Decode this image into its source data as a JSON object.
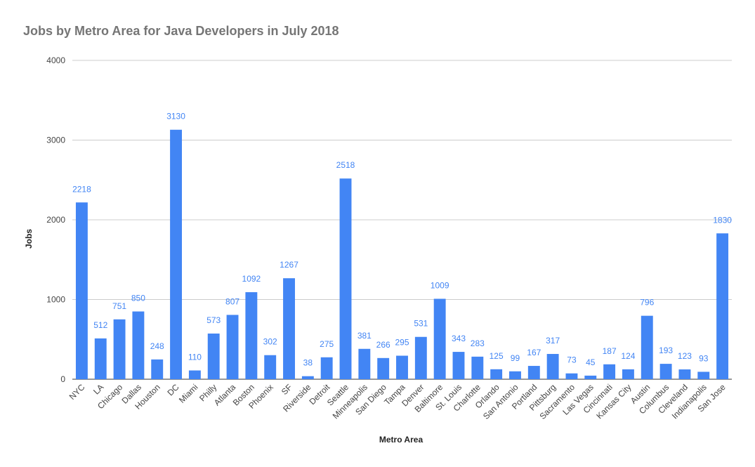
{
  "chart_data": {
    "type": "bar",
    "title": "Jobs by Metro Area for Java Developers in July 2018",
    "xlabel": "Metro Area",
    "ylabel": "Jobs",
    "ylim": [
      0,
      4000
    ],
    "yticks": [
      0,
      1000,
      2000,
      3000,
      4000
    ],
    "grid": true,
    "legend": "none",
    "color": "#4285f4",
    "categories": [
      "NYC",
      "LA",
      "Chicago",
      "Dallas",
      "Houston",
      "DC",
      "Miami",
      "Philly",
      "Atlanta",
      "Boston",
      "Phoenix",
      "SF",
      "Riverside",
      "Detroit",
      "Seattle",
      "Minneapolis",
      "San Diego",
      "Tampa",
      "Denver",
      "Baltimore",
      "St. Louis",
      "Charlotte",
      "Orlando",
      "San Antonio",
      "Portland",
      "Pittsburg",
      "Sacramento",
      "Las Vegas",
      "Cincinnati",
      "Kansas City",
      "Austin",
      "Columbus",
      "Cleveland",
      "Indianapolis",
      "San Jose"
    ],
    "values": [
      2218,
      512,
      751,
      850,
      248,
      3130,
      110,
      573,
      807,
      1092,
      302,
      1267,
      38,
      275,
      2518,
      381,
      266,
      295,
      531,
      1009,
      343,
      283,
      125,
      99,
      167,
      317,
      73,
      45,
      187,
      124,
      796,
      193,
      123,
      93,
      1830
    ]
  }
}
